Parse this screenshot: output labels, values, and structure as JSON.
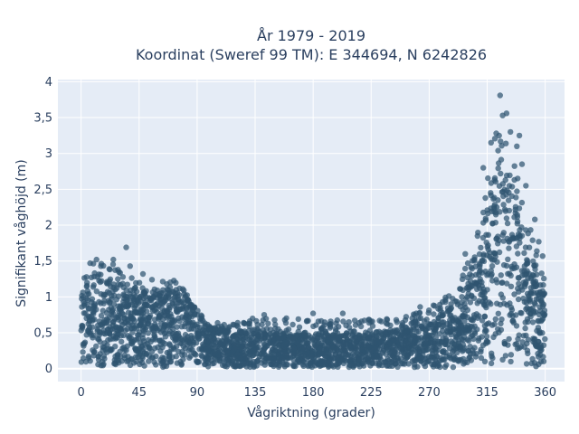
{
  "chart_data": {
    "type": "scatter",
    "title_lines": [
      "År 1979 - 2019",
      "Koordinat (Sweref 99 TM): E 344694, N 6242826"
    ],
    "xlabel": "Vågriktning (grader)",
    "ylabel": "Signifikant våghöjd (m)",
    "xlim": [
      -18,
      375
    ],
    "ylim": [
      -0.18,
      4.03
    ],
    "x_ticks": [
      0,
      45,
      90,
      135,
      180,
      225,
      270,
      315,
      360
    ],
    "y_ticks": [
      0,
      0.5,
      1,
      1.5,
      2,
      2.5,
      3,
      3.5,
      4
    ],
    "y_tick_labels": [
      "0",
      "0,5",
      "1",
      "1,5",
      "2",
      "2,5",
      "3",
      "3,5",
      "4"
    ],
    "grid": true,
    "legend": "none",
    "marker_color": "#2f5570",
    "background": "#e5ecf6",
    "density_envelope": {
      "direction_deg": [
        0,
        5,
        10,
        20,
        30,
        45,
        55,
        65,
        72,
        80,
        88,
        95,
        110,
        135,
        160,
        180,
        200,
        225,
        250,
        270,
        285,
        295,
        300,
        305,
        310,
        315,
        318,
        322,
        326,
        330,
        335,
        340,
        345,
        350,
        355,
        360
      ],
      "dense_max_height_m": [
        0.95,
        1.2,
        1.25,
        1.2,
        1.1,
        1.0,
        0.98,
        1.02,
        1.08,
        1.0,
        0.8,
        0.6,
        0.52,
        0.5,
        0.48,
        0.46,
        0.46,
        0.48,
        0.52,
        0.62,
        0.8,
        1.0,
        1.15,
        1.35,
        1.65,
        2.1,
        2.45,
        2.7,
        2.8,
        2.65,
        2.35,
        1.95,
        1.6,
        1.35,
        1.15,
        1.0
      ],
      "sparse_max_height_m": [
        1.3,
        1.45,
        1.5,
        1.5,
        1.45,
        1.3,
        1.25,
        1.22,
        1.25,
        1.1,
        0.9,
        0.7,
        0.65,
        0.7,
        0.72,
        0.7,
        0.68,
        0.7,
        0.72,
        0.85,
        1.05,
        1.3,
        1.5,
        1.75,
        2.1,
        2.6,
        3.2,
        3.35,
        3.3,
        3.2,
        2.95,
        2.6,
        2.2,
        1.85,
        1.6,
        1.45
      ]
    },
    "outliers": [
      {
        "x": 35,
        "y": 1.69
      },
      {
        "x": 12,
        "y": 1.52
      },
      {
        "x": 7,
        "y": 1.47
      },
      {
        "x": 25,
        "y": 1.52
      },
      {
        "x": 48,
        "y": 1.32
      },
      {
        "x": 38,
        "y": 1.43
      },
      {
        "x": 142,
        "y": 0.75
      },
      {
        "x": 180,
        "y": 0.77
      },
      {
        "x": 203,
        "y": 0.77
      },
      {
        "x": 175,
        "y": 0.66
      },
      {
        "x": 133,
        "y": 0.7
      },
      {
        "x": 245,
        "y": 0.65
      },
      {
        "x": 262,
        "y": 0.7
      },
      {
        "x": 263,
        "y": 0.86
      },
      {
        "x": 287,
        "y": 0.9
      },
      {
        "x": 300,
        "y": 1.47
      },
      {
        "x": 302,
        "y": 1.22
      },
      {
        "x": 325,
        "y": 3.81
      },
      {
        "x": 330,
        "y": 3.56
      },
      {
        "x": 327,
        "y": 3.53
      },
      {
        "x": 340,
        "y": 3.25
      },
      {
        "x": 338,
        "y": 3.1
      },
      {
        "x": 345,
        "y": 2.55
      },
      {
        "x": 352,
        "y": 2.08
      },
      {
        "x": 355,
        "y": 1.77
      },
      {
        "x": 358,
        "y": 1.57
      },
      {
        "x": 312,
        "y": 2.8
      },
      {
        "x": 318,
        "y": 3.15
      },
      {
        "x": 322,
        "y": 3.28
      },
      {
        "x": 333,
        "y": 3.3
      },
      {
        "x": 342,
        "y": 2.85
      },
      {
        "x": 298,
        "y": 1.6
      }
    ]
  }
}
